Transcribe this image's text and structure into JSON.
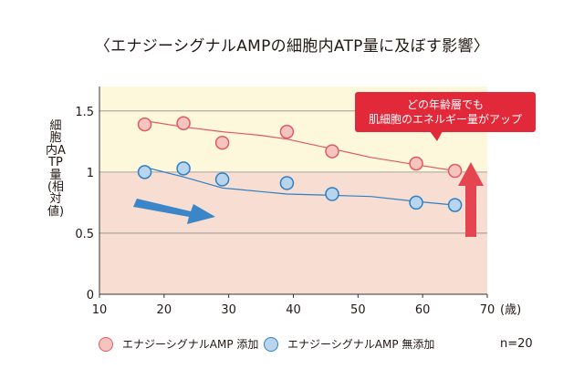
{
  "chart_data": {
    "type": "scatter",
    "title": "〈エナジーシグナルAMPの細胞内ATP量に及ぼす影響〉",
    "ylabel": "細胞内ATP量(相対値)",
    "xunit": "(歳)",
    "xlim": [
      10,
      70
    ],
    "ylim": [
      0,
      1.7
    ],
    "xticks": [
      10,
      20,
      30,
      40,
      50,
      60,
      70
    ],
    "yticks": [
      0,
      0.5,
      1,
      1.5
    ],
    "ytick_labels": [
      "0",
      "0.5",
      "1",
      "1.5"
    ],
    "background_bands": [
      {
        "from": 1.0,
        "to": 1.7,
        "color": "#fdf7dc"
      },
      {
        "from": 0.0,
        "to": 1.0,
        "color": "#f8ddd2"
      }
    ],
    "grid": "horizontal",
    "series": [
      {
        "name": "エナジーシグナルAMP 添加",
        "color": "#e05a62",
        "fill": "#f6c4bf",
        "points": [
          [
            17,
            1.39
          ],
          [
            23,
            1.4
          ],
          [
            29,
            1.24
          ],
          [
            39,
            1.33
          ],
          [
            46,
            1.17
          ],
          [
            59,
            1.07
          ],
          [
            65,
            1.01
          ]
        ],
        "trend": [
          [
            17,
            1.42
          ],
          [
            23,
            1.37
          ],
          [
            29,
            1.33
          ],
          [
            35,
            1.3
          ],
          [
            39,
            1.27
          ],
          [
            46,
            1.19
          ],
          [
            52,
            1.12
          ],
          [
            59,
            1.06
          ],
          [
            65,
            1.01
          ]
        ]
      },
      {
        "name": "エナジーシグナルAMP 無添加",
        "color": "#2d7fc3",
        "fill": "#b9d5ee",
        "points": [
          [
            17,
            1.0
          ],
          [
            23,
            1.03
          ],
          [
            29,
            0.94
          ],
          [
            39,
            0.91
          ],
          [
            46,
            0.82
          ],
          [
            59,
            0.75
          ],
          [
            65,
            0.73
          ]
        ],
        "trend": [
          [
            17,
            1.04
          ],
          [
            23,
            0.96
          ],
          [
            29,
            0.87
          ],
          [
            35,
            0.84
          ],
          [
            39,
            0.82
          ],
          [
            46,
            0.81
          ],
          [
            52,
            0.8
          ],
          [
            59,
            0.76
          ],
          [
            65,
            0.73
          ]
        ]
      }
    ],
    "annotations": {
      "callout_lines": [
        "どの年齢層でも",
        "肌細胞のエネルギー量がアップ"
      ],
      "callout_color": "#e2293a",
      "up_arrow_color": "#e44550",
      "down_arrow_color": "#3b86c8"
    },
    "sample_size": "n=20"
  }
}
